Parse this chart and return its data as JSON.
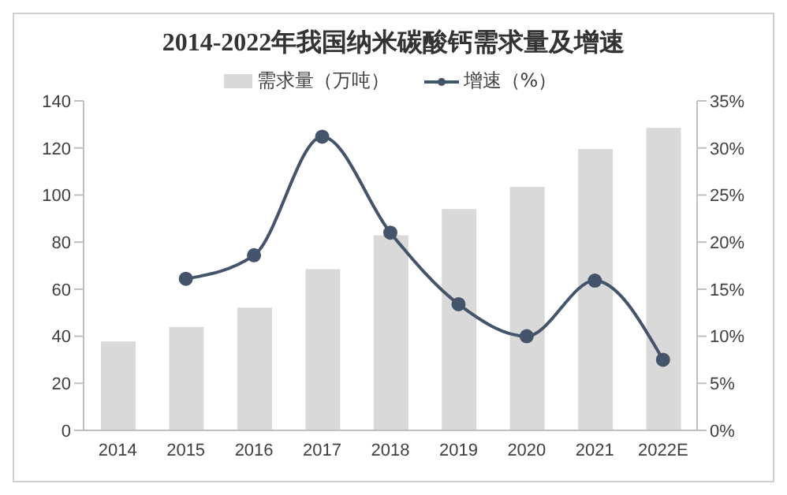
{
  "chart_data": {
    "type": "bar",
    "title": "2014-2022年我国纳米碳酸钙需求量及增速",
    "categories": [
      "2014",
      "2015",
      "2016",
      "2017",
      "2018",
      "2019",
      "2020",
      "2021",
      "2022E"
    ],
    "series": [
      {
        "name": "需求量（万吨）",
        "color": "#d9d9d9",
        "values": [
          37.8,
          44,
          52.2,
          68.5,
          82.9,
          94,
          103.5,
          119.6,
          128.5
        ]
      },
      {
        "name": "增速（%）",
        "type": "line",
        "axis": "y2",
        "color": "#44546a",
        "values": [
          null,
          16.1,
          18.6,
          31.2,
          21,
          13.4,
          10,
          15.9,
          7.5
        ]
      }
    ],
    "ylim": [
      0,
      140
    ],
    "yticks": [
      0,
      20,
      40,
      60,
      80,
      100,
      120,
      140
    ],
    "y2lim": [
      0,
      35
    ],
    "y2ticks": [
      {
        "value": 0,
        "label": "0%"
      },
      {
        "value": 5,
        "label": "5%"
      },
      {
        "value": 10,
        "label": "10%"
      },
      {
        "value": 15,
        "label": "15%"
      },
      {
        "value": 20,
        "label": "20%"
      },
      {
        "value": 25,
        "label": "25%"
      },
      {
        "value": 30,
        "label": "30%"
      },
      {
        "value": 35,
        "label": "35%"
      }
    ],
    "legend": "top",
    "grid": false,
    "marker": "circle",
    "line_style": "solid"
  }
}
